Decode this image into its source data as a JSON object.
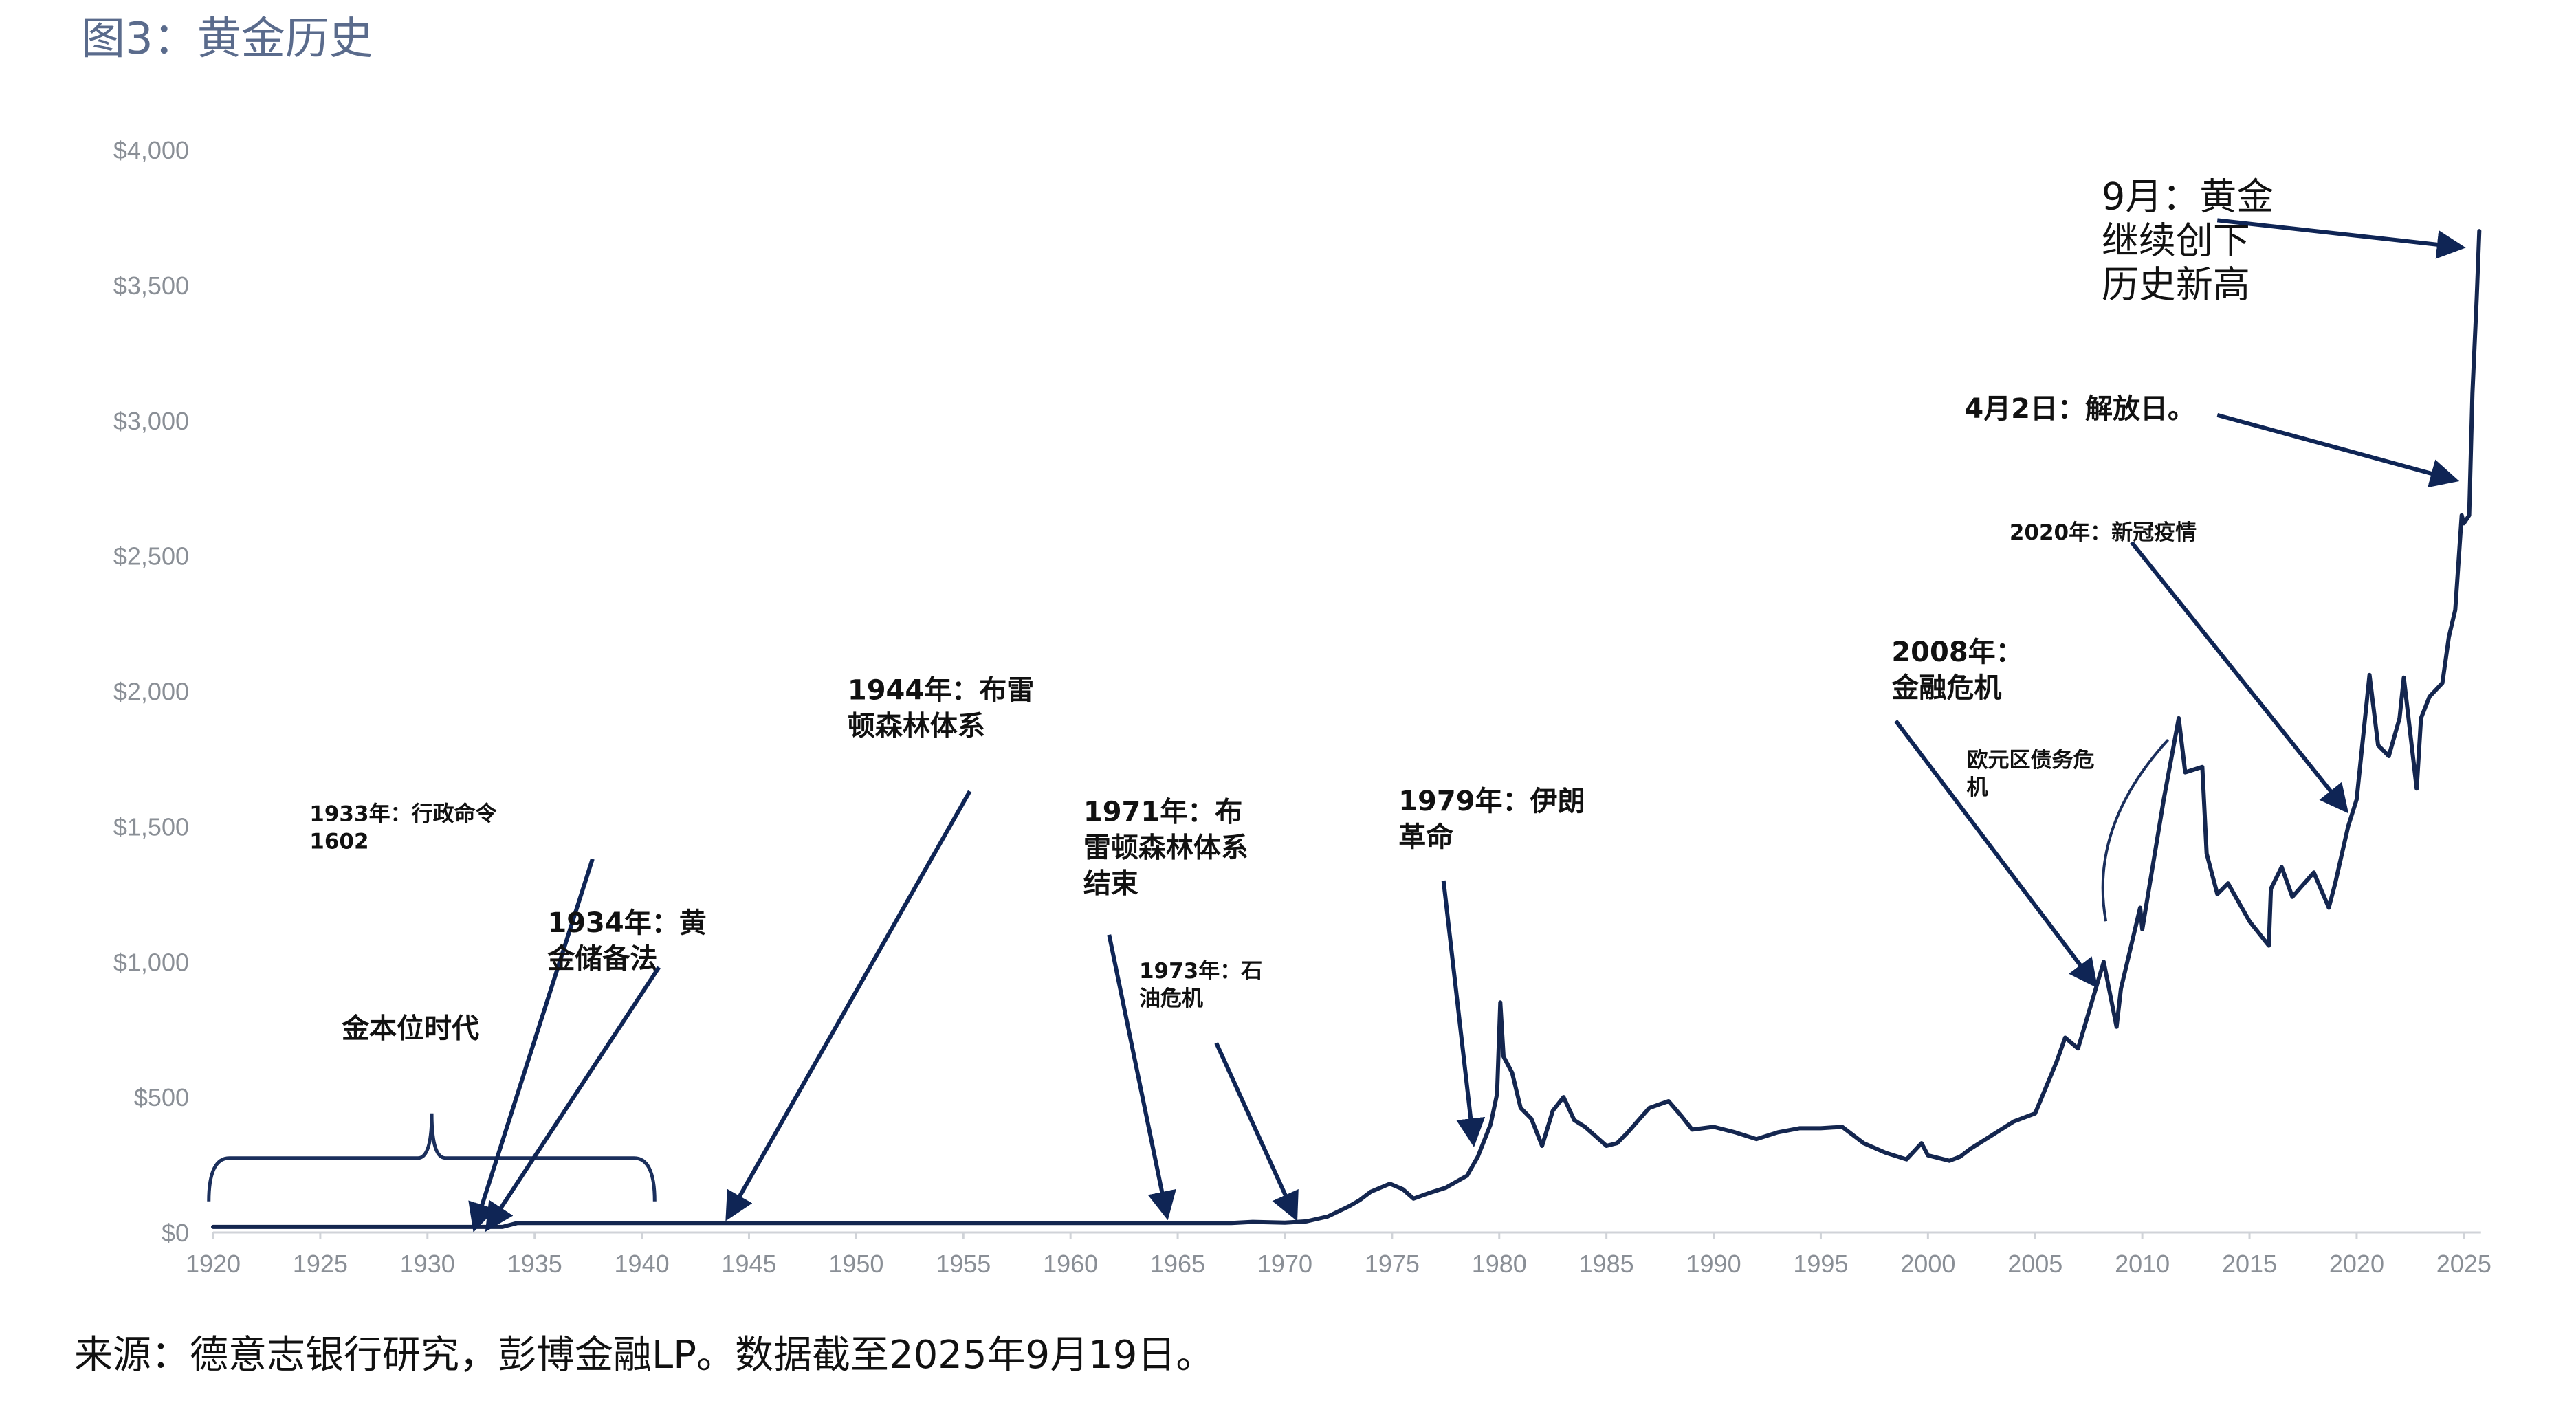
{
  "figure": {
    "title": "图3：黄金历史",
    "source": "来源：德意志银行研究，彭博金融LP。数据截至2025年9月19日。"
  },
  "colors": {
    "line": "#14264f",
    "arrow": "#0f2555",
    "axis_text": "#8a8f96",
    "title": "#5a6b8c"
  },
  "chart_data": {
    "type": "line",
    "xlim": [
      1920,
      2026
    ],
    "ylim": [
      0,
      4000
    ],
    "x_ticks": [
      1920,
      1925,
      1930,
      1935,
      1940,
      1945,
      1950,
      1955,
      1960,
      1965,
      1970,
      1975,
      1980,
      1985,
      1990,
      1995,
      2000,
      2005,
      2010,
      2015,
      2020,
      2025
    ],
    "x_tick_labels": [
      "1920",
      "1925",
      "1930",
      "1935",
      "1940",
      "1945",
      "1950",
      "1955",
      "1960",
      "1965",
      "1970",
      "1975",
      "1980",
      "1985",
      "1990",
      "1995",
      "2000",
      "2005",
      "2010",
      "2015",
      "2020",
      "2025"
    ],
    "y_ticks": [
      0,
      500,
      1000,
      1500,
      2000,
      2500,
      3000,
      3500,
      4000
    ],
    "y_tick_labels": [
      "$0",
      "$500",
      "$1,000",
      "$1,500",
      "$2,000",
      "$2,500",
      "$3,000",
      "$3,500",
      "$4,000"
    ],
    "grid": false,
    "legend": "none",
    "series": [
      {
        "x": [
          1920,
          1933.5,
          1934.2,
          1967.5,
          1968.5,
          1970,
          1971,
          1972,
          1973,
          1973.5,
          1974,
          1974.9,
          1975.5,
          1976,
          1976.7,
          1977.5,
          1978.5,
          1979,
          1979.6,
          1979.9,
          1980.05,
          1980.2,
          1980.6,
          1981,
          1981.5,
          1982,
          1982.5,
          1983,
          1983.5,
          1984,
          1985,
          1985.5,
          1986,
          1987,
          1987.9,
          1988.5,
          1989,
          1990,
          1991,
          1992,
          1993,
          1994,
          1995,
          1996,
          1997,
          1998,
          1999,
          1999.7,
          2000,
          2001,
          2001.5,
          2002,
          2003,
          2004,
          2005,
          2006,
          2006.4,
          2007,
          2008.2,
          2008.8,
          2009,
          2009.9,
          2010,
          2011,
          2011.7,
          2012,
          2012.8,
          2013,
          2013.5,
          2014,
          2015,
          2015.9,
          2016,
          2016.5,
          2017,
          2018,
          2018.7,
          2019,
          2019.6,
          2020,
          2020.6,
          2021,
          2021.5,
          2022,
          2022.2,
          2022.8,
          2023,
          2023.4,
          2024,
          2024.3,
          2024.6,
          2024.9,
          2025,
          2025.25,
          2025.4,
          2025.6,
          2025.72
        ],
        "y": [
          20.67,
          20.67,
          35,
          35,
          39,
          36,
          41,
          59,
          97,
          120,
          150,
          180,
          160,
          125,
          145,
          165,
          210,
          280,
          400,
          512,
          850,
          650,
          590,
          460,
          420,
          320,
          450,
          500,
          415,
          390,
          320,
          330,
          370,
          460,
          485,
          430,
          380,
          390,
          370,
          345,
          370,
          385,
          385,
          390,
          330,
          295,
          270,
          330,
          285,
          265,
          280,
          310,
          360,
          410,
          440,
          630,
          720,
          680,
          1000,
          760,
          900,
          1200,
          1120,
          1600,
          1900,
          1700,
          1720,
          1400,
          1250,
          1290,
          1150,
          1060,
          1270,
          1350,
          1240,
          1330,
          1200,
          1290,
          1500,
          1600,
          2060,
          1800,
          1760,
          1900,
          2050,
          1640,
          1900,
          1980,
          2030,
          2200,
          2300,
          2650,
          2620,
          2650,
          3100,
          3450,
          3700
        ]
      }
    ],
    "annotations": [
      {
        "lines": [
          "金本位时代"
        ],
        "text_x": 1926.0,
        "text_y": 720,
        "size": "l"
      },
      {
        "lines": [
          "1933年：行政命令",
          "1602"
        ],
        "text_x": 1924.5,
        "text_y": 1520,
        "size": "s",
        "from": [
          1937.7,
          1380
        ],
        "to": [
          1932.2,
          15
        ]
      },
      {
        "lines": [
          "1934年：黄",
          "金储备法"
        ],
        "text_x": 1935.6,
        "text_y": 1110,
        "size": "l",
        "from": [
          1940.8,
          980
        ],
        "to": [
          1932.8,
          15
        ]
      },
      {
        "lines": [
          "1944年：布雷",
          "顿森林体系"
        ],
        "text_x": 1949.6,
        "text_y": 1970,
        "size": "l",
        "from": [
          1955.3,
          1630
        ],
        "to": [
          1944.0,
          55
        ]
      },
      {
        "lines": [
          "1971年：布",
          "雷顿森林体系",
          "结束"
        ],
        "text_x": 1960.6,
        "text_y": 1520,
        "size": "l",
        "from": [
          1961.8,
          1100
        ],
        "to": [
          1964.5,
          60
        ]
      },
      {
        "lines": [
          "1973年：石",
          "油危机"
        ],
        "text_x": 1963.2,
        "text_y": 940,
        "size": "s",
        "from": [
          1966.8,
          700
        ],
        "to": [
          1970.5,
          55
        ]
      },
      {
        "lines": [
          "1979年：伊朗",
          "革命"
        ],
        "text_x": 1975.3,
        "text_y": 1560,
        "size": "l",
        "from": [
          1977.4,
          1300
        ],
        "to": [
          1978.8,
          330
        ]
      },
      {
        "lines": [
          "2008年：",
          "金融危机"
        ],
        "text_x": 1998.3,
        "text_y": 2110,
        "size": "l",
        "from": [
          1998.5,
          1890
        ],
        "to": [
          2007.8,
          915
        ]
      },
      {
        "lines": [
          "欧元区债务危",
          "机"
        ],
        "text_x": 2001.8,
        "text_y": 1720,
        "size": "s"
      },
      {
        "lines": [
          "2020年：新冠疫情"
        ],
        "text_x": 2003.8,
        "text_y": 2560,
        "size": "s",
        "from": [
          2009.5,
          2550
        ],
        "to": [
          2019.5,
          1560
        ]
      },
      {
        "lines": [
          "4月2日：解放日。"
        ],
        "text_x": 2001.7,
        "text_y": 3010,
        "size": "l",
        "from": [
          2013.5,
          3020
        ],
        "to": [
          2024.6,
          2780
        ]
      },
      {
        "lines": [
          "9月：黄金",
          "继续创下",
          "历史新高"
        ],
        "text_x": 2008.1,
        "text_y": 3780,
        "size": "xl",
        "from": [
          2013.5,
          3740
        ],
        "to": [
          2024.9,
          3640
        ]
      }
    ]
  }
}
